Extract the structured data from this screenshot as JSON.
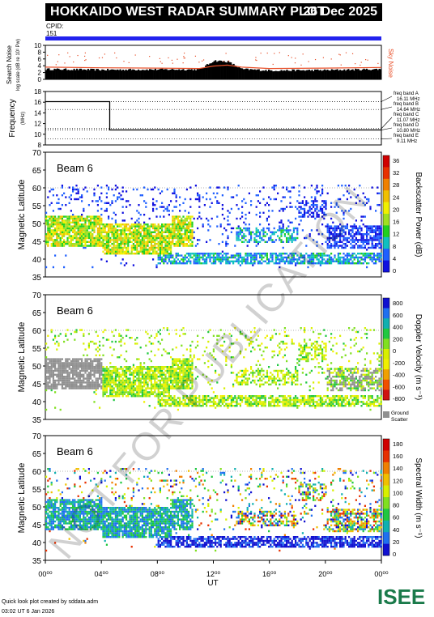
{
  "header": {
    "title": "HOKKAIDO WEST RADAR SUMMARY PLOT",
    "date": "26 Dec 2025",
    "cpid_label": "CPID:",
    "cpid_value": "151"
  },
  "watermark": "NOT FOR PUBLICATION",
  "noise_panel": {
    "ylabel": "Search Noise",
    "ylabel2": "log scale (dB re 10¹ Pw)",
    "right_label": "Sky Noise",
    "ticks": [
      "10",
      "8",
      "6",
      "4",
      "2",
      "0"
    ],
    "color_sky": "#e8502a"
  },
  "freq_panel": {
    "ylabel": "Frequency",
    "unit": "(MHz)",
    "ticks": [
      "18",
      "16",
      "14",
      "12",
      "10",
      "8"
    ],
    "bands": [
      {
        "label": "freq band A",
        "value": "16.11 MHz"
      },
      {
        "label": "freq band B",
        "value": "14.64 MHz"
      },
      {
        "label": "freq band C",
        "value": "11.07 MHz"
      },
      {
        "label": "freq band D",
        "value": "10.80 MHz"
      },
      {
        "label": "freq band E",
        "value": "9.11 MHz"
      }
    ]
  },
  "panels": [
    {
      "beam": "Beam  6",
      "ylabel": "Magnetic Latitude",
      "cbar_label": "Backscatter Power (dB)",
      "cbar_ticks": [
        "36",
        "32",
        "28",
        "24",
        "20",
        "16",
        "12",
        "8",
        "4",
        "0"
      ],
      "cbar_type": "power"
    },
    {
      "beam": "Beam  6",
      "ylabel": "Magnetic Latitude",
      "cbar_label": "Doppler Velocity (m s⁻¹)",
      "cbar_ticks": [
        "800",
        "600",
        "400",
        "200",
        "0",
        "-200",
        "-400",
        "-600",
        "-800"
      ],
      "cbar_type": "velocity",
      "extra_label1": "Ground",
      "extra_label2": "Scatter"
    },
    {
      "beam": "Beam  6",
      "ylabel": "Magnetic Latitude",
      "cbar_label": "Spectral Width (m s⁻¹)",
      "cbar_ticks": [
        "180",
        "160",
        "140",
        "120",
        "100",
        "80",
        "60",
        "40",
        "20",
        "0"
      ],
      "cbar_type": "width"
    }
  ],
  "lat_ticks": [
    "70",
    "65",
    "60",
    "55",
    "50",
    "45",
    "40",
    "35"
  ],
  "x_axis": {
    "ticks": [
      "00⁰⁰",
      "04⁰⁰",
      "08⁰⁰",
      "12⁰⁰",
      "16⁰⁰",
      "20⁰⁰",
      "00⁰⁰"
    ],
    "label": "UT"
  },
  "footer": {
    "line1": "Quick look plot created by sddata.adm",
    "line2": "03:02 UT  6 Jan 2026"
  },
  "logo": "ISEE",
  "chart_data": [
    {
      "type": "line",
      "title": "Search Noise",
      "xlabel": "UT",
      "ylabel": "Search Noise",
      "ylim": [
        0,
        10
      ],
      "x": [
        0,
        4,
        8,
        11,
        12,
        13,
        14,
        16,
        20,
        24
      ],
      "series": [
        {
          "name": "Sky Noise",
          "values": [
            3.6,
            3.4,
            3.3,
            3.2,
            3.9,
            4.2,
            3.6,
            3.2,
            3.3,
            3.5
          ]
        }
      ],
      "bars_values": [
        3.0,
        2.8,
        2.9,
        2.9,
        5.5,
        5.2,
        3.0,
        2.6,
        2.7,
        3.0
      ]
    },
    {
      "type": "line",
      "title": "Frequency",
      "xlabel": "UT",
      "ylabel": "Frequency (MHz)",
      "ylim": [
        8,
        18
      ],
      "x": [
        0,
        4.6,
        4.6,
        24
      ],
      "series": [
        {
          "name": "freq",
          "values": [
            16.1,
            16.1,
            10.8,
            10.8
          ]
        }
      ]
    },
    {
      "type": "heatmap",
      "title": "Beam 6 Backscatter Power",
      "xlabel": "UT",
      "ylabel": "Magnetic Latitude",
      "xlim": [
        0,
        24
      ],
      "ylim": [
        35,
        70
      ],
      "zlim": [
        0,
        36
      ]
    },
    {
      "type": "heatmap",
      "title": "Beam 6 Doppler Velocity",
      "xlabel": "UT",
      "ylabel": "Magnetic Latitude",
      "xlim": [
        0,
        24
      ],
      "ylim": [
        35,
        70
      ],
      "zlim": [
        -800,
        800
      ]
    },
    {
      "type": "heatmap",
      "title": "Beam 6 Spectral Width",
      "xlabel": "UT",
      "ylabel": "Magnetic Latitude",
      "xlim": [
        0,
        24
      ],
      "ylim": [
        35,
        70
      ],
      "zlim": [
        0,
        180
      ]
    }
  ]
}
